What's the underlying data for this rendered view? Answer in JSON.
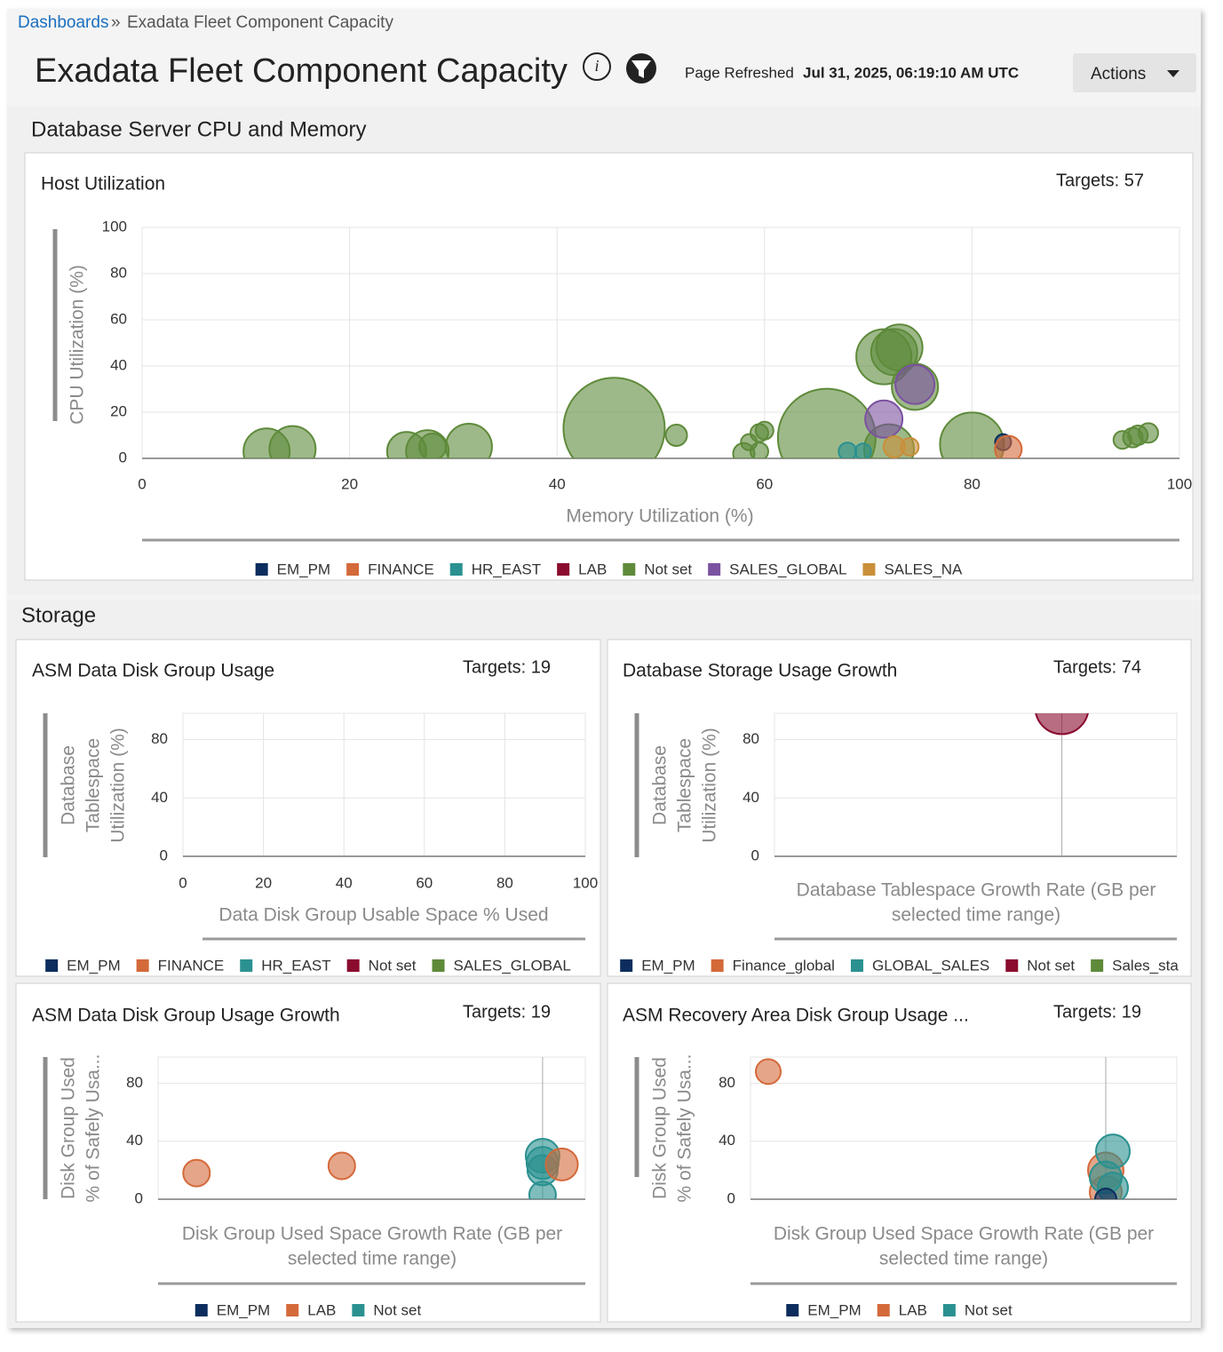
{
  "breadcrumb": {
    "link": "Dashboards",
    "separator": "»",
    "current": "Exadata Fleet Component Capacity"
  },
  "header": {
    "title": "Exadata Fleet Component Capacity",
    "refreshed_label": "Page Refreshed",
    "refreshed_at": "Jul 31, 2025, 06:19:10 AM UTC",
    "actions": "Actions"
  },
  "sections": [
    "Database Server CPU and Memory",
    "Storage"
  ],
  "chart_data": [
    {
      "type": "bubble",
      "title": "Host Utilization",
      "targets": "Targets: 57",
      "x_label": [
        "Memory Utilization (%)"
      ],
      "y_label": [
        "CPU Utilization (%)"
      ],
      "xlim": [
        0,
        100
      ],
      "xticks": [
        0,
        20,
        40,
        60,
        80,
        100
      ],
      "ylim": [
        0,
        100
      ],
      "yticks": [
        0,
        20,
        40,
        60,
        80,
        100
      ],
      "grid": true,
      "series": [
        {
          "name": "EM_PM",
          "color": "#0c2d5e",
          "x": [
            83
          ],
          "values": [
            7
          ],
          "sizes": [
            9
          ]
        },
        {
          "name": "FINANCE",
          "color": "#d4693a",
          "x": [
            83.5
          ],
          "values": [
            4
          ],
          "sizes": [
            15
          ]
        },
        {
          "name": "HR_EAST",
          "color": "#2a9190",
          "x": [
            68,
            69.5
          ],
          "values": [
            3,
            3
          ],
          "sizes": [
            10,
            9
          ]
        },
        {
          "name": "LAB",
          "color": "#8a0b2e",
          "x": [],
          "values": [],
          "sizes": []
        },
        {
          "name": "Not set",
          "color": "#5e8a3a",
          "x": [
            12,
            14.5,
            25.5,
            27.5,
            28,
            31.5,
            45.5,
            51.5,
            58,
            58.5,
            59.5,
            60,
            59.5,
            66,
            71.5,
            72.5,
            73,
            74.5,
            72,
            80,
            94.5,
            95.5,
            96,
            97
          ],
          "values": [
            3,
            4,
            3,
            3,
            5,
            5,
            13,
            10,
            2,
            7,
            11,
            12,
            3,
            9,
            44,
            46,
            48,
            31,
            4,
            6,
            8,
            9,
            10,
            11
          ],
          "sizes": [
            26,
            26,
            22,
            24,
            15,
            26,
            57,
            12,
            12,
            9,
            10,
            10,
            10,
            55,
            31,
            26,
            26,
            26,
            28,
            36,
            10,
            11,
            11,
            11
          ]
        },
        {
          "name": "SALES_GLOBAL",
          "color": "#7b52a0",
          "x": [
            74.5,
            71.5
          ],
          "values": [
            32,
            17
          ],
          "sizes": [
            22,
            21
          ]
        },
        {
          "name": "SALES_NA",
          "color": "#c98f3a",
          "x": [
            72.5,
            74
          ],
          "values": [
            5,
            5
          ],
          "sizes": [
            12,
            10
          ]
        }
      ]
    },
    {
      "type": "bubble",
      "title": "ASM Data Disk Group Usage",
      "targets": "Targets: 19",
      "x_label": [
        "Data Disk Group Usable Space % Used"
      ],
      "y_label": [
        "Database",
        "Tablespace",
        "Utilization (%)"
      ],
      "xlim": [
        0,
        100
      ],
      "xticks": [
        0,
        20,
        40,
        60,
        80,
        100
      ],
      "ylim": [
        0,
        98
      ],
      "yticks": [
        0,
        40,
        80
      ],
      "grid": true,
      "series": [
        {
          "name": "EM_PM",
          "color": "#0c2d5e",
          "x": [],
          "values": [],
          "sizes": []
        },
        {
          "name": "FINANCE",
          "color": "#d4693a",
          "x": [],
          "values": [],
          "sizes": []
        },
        {
          "name": "HR_EAST",
          "color": "#2a9190",
          "x": [],
          "values": [],
          "sizes": []
        },
        {
          "name": "Not set",
          "color": "#8a0b2e",
          "x": [],
          "values": [],
          "sizes": []
        },
        {
          "name": "SALES_GLOBAL",
          "color": "#5e8a3a",
          "x": [],
          "values": [],
          "sizes": []
        }
      ]
    },
    {
      "type": "bubble",
      "title": "Database Storage Usage Growth",
      "targets": "Targets: 74",
      "x_label": [
        "Database Tablespace Growth Rate (GB per",
        "selected time range)"
      ],
      "y_label": [
        "Database",
        "Tablespace",
        "Utilization (%)"
      ],
      "xlim": [
        -5,
        2
      ],
      "ylim": [
        0,
        98
      ],
      "yticks": [
        0,
        40,
        80
      ],
      "grid": true,
      "series": [
        {
          "name": "EM_PM",
          "color": "#0c2d5e",
          "x": [],
          "values": [],
          "sizes": []
        },
        {
          "name": "Finance_global",
          "color": "#d4693a",
          "x": [],
          "values": [],
          "sizes": []
        },
        {
          "name": "GLOBAL_SALES",
          "color": "#2a9190",
          "x": [],
          "values": [],
          "sizes": []
        },
        {
          "name": "Not set",
          "color": "#8a0b2e",
          "x": [
            0
          ],
          "values": [
            102
          ],
          "sizes": [
            30
          ]
        },
        {
          "name": "Sales_sta",
          "color": "#5e8a3a",
          "x": [],
          "values": [],
          "sizes": []
        }
      ]
    },
    {
      "type": "bubble",
      "title": "ASM Data Disk Group Usage Growth",
      "targets": "Targets: 19",
      "x_label": [
        "Disk Group Used Space Growth Rate (GB per",
        "selected time range)"
      ],
      "y_label": [
        "Disk Group Used",
        "% of Safely Usa..."
      ],
      "xlim": [
        -9,
        1
      ],
      "ylim": [
        0,
        98
      ],
      "yticks": [
        0,
        40,
        80
      ],
      "grid": true,
      "series": [
        {
          "name": "EM_PM",
          "color": "#0c2d5e",
          "x": [],
          "values": [],
          "sizes": []
        },
        {
          "name": "LAB",
          "color": "#d4693a",
          "x": [
            -8.1,
            -4.7,
            0.45
          ],
          "values": [
            18,
            23,
            24
          ],
          "sizes": [
            15,
            15,
            18
          ]
        },
        {
          "name": "Not set",
          "color": "#2a9190",
          "x": [
            0,
            0,
            0,
            0
          ],
          "values": [
            30,
            25,
            20,
            3
          ],
          "sizes": [
            19,
            18,
            17,
            15
          ]
        }
      ]
    },
    {
      "type": "bubble",
      "title": "ASM Recovery Area Disk Group Usage ...",
      "targets": "Targets: 19",
      "x_label": [
        "Disk Group Used Space Growth Rate (GB per",
        "selected time range)"
      ],
      "y_label": [
        "Disk Group Used",
        "% of Safely Usa..."
      ],
      "xlim": [
        -5,
        1
      ],
      "ylim": [
        0,
        98
      ],
      "yticks": [
        0,
        40,
        80
      ],
      "grid": true,
      "series": [
        {
          "name": "EM_PM",
          "color": "#0c2d5e",
          "x": [
            0
          ],
          "values": [
            0
          ],
          "sizes": [
            12
          ]
        },
        {
          "name": "LAB",
          "color": "#d4693a",
          "x": [
            -4.75,
            0,
            0
          ],
          "values": [
            88,
            20,
            5
          ],
          "sizes": [
            14,
            20,
            18
          ]
        },
        {
          "name": "Not set",
          "color": "#2a9190",
          "x": [
            0.1,
            0,
            0.1
          ],
          "values": [
            33,
            15,
            8
          ],
          "sizes": [
            19,
            18,
            17
          ]
        }
      ]
    }
  ]
}
